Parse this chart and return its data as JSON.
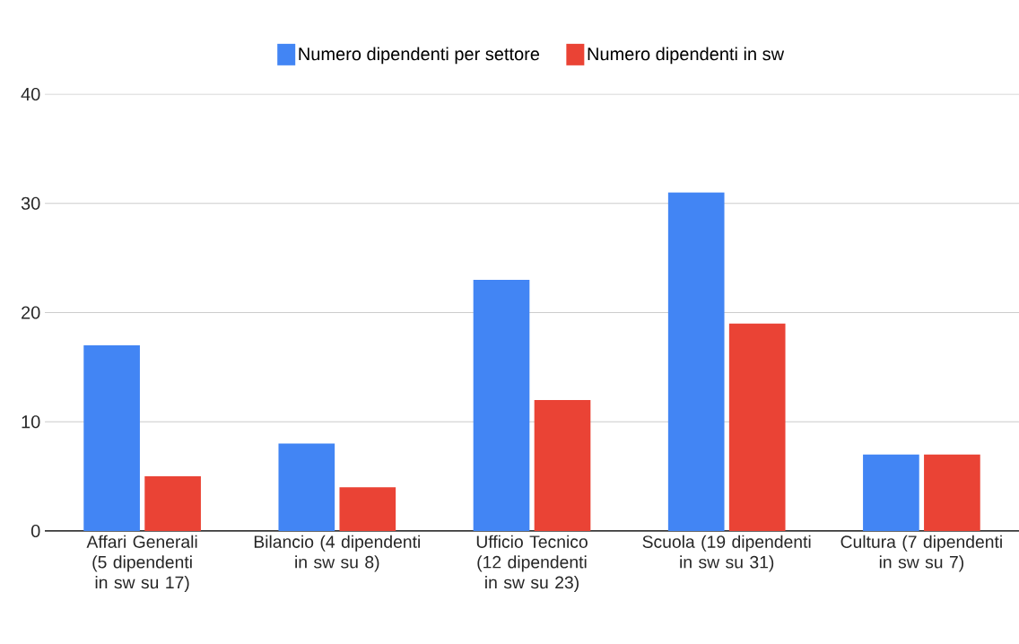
{
  "chart_data": {
    "type": "bar",
    "categories": [
      "Affari Generali (5 dipendenti in sw su 17)",
      "Bilancio (4 dipendenti in sw su 8)",
      "Ufficio Tecnico (12 dipendenti in sw su 23)",
      "Scuola (19 dipendenti in sw su 31)",
      "Cultura (7 dipendenti in sw su 7)"
    ],
    "series": [
      {
        "name": "Numero dipendenti per settore",
        "color": "#4285f4",
        "values": [
          17,
          8,
          23,
          31,
          7
        ]
      },
      {
        "name": "Numero dipendenti in sw",
        "color": "#ea4335",
        "values": [
          5,
          4,
          12,
          19,
          7
        ]
      }
    ],
    "ylim": [
      0,
      40
    ],
    "yticks": [
      0,
      10,
      20,
      30,
      40
    ],
    "grid": "y",
    "legend": "top"
  }
}
